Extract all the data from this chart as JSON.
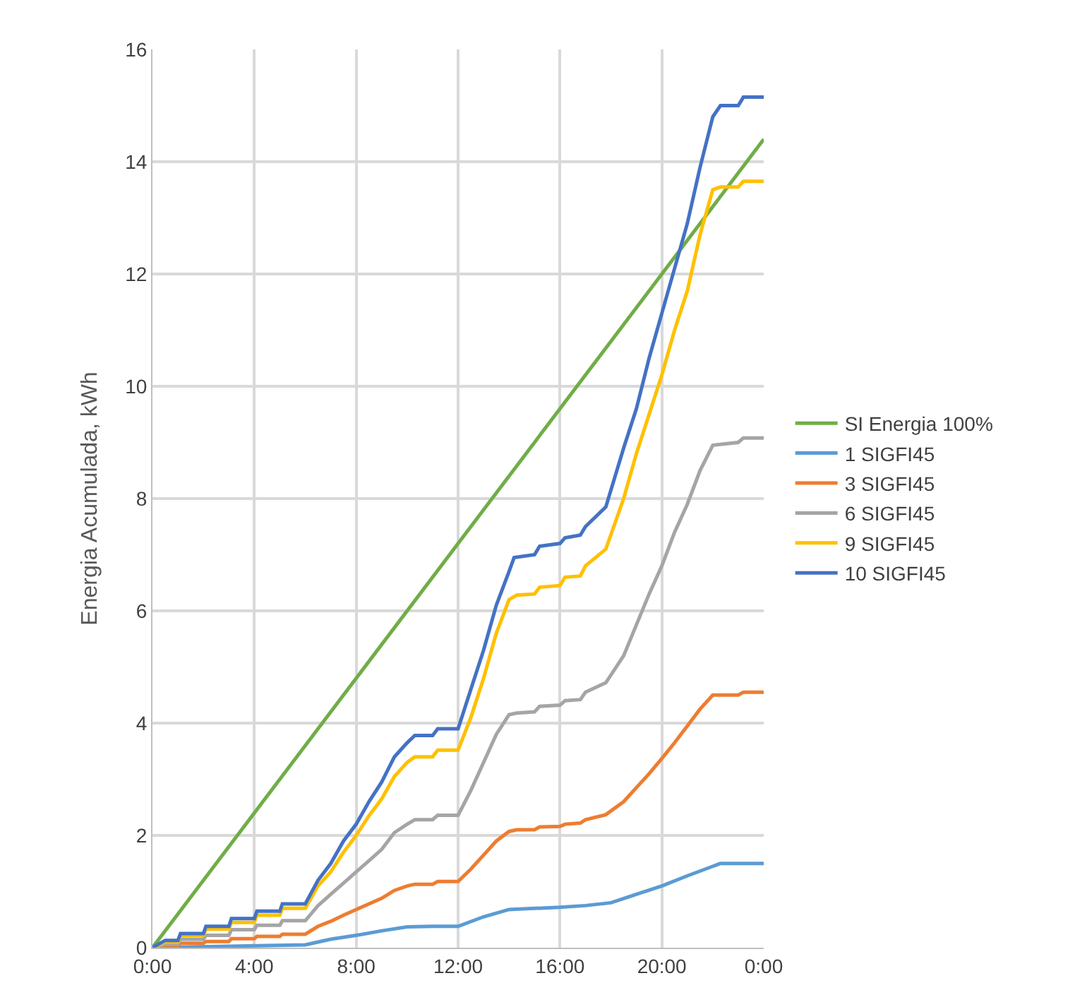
{
  "chart_data": {
    "type": "line",
    "ylabel": "Energia Acumulada, kWh",
    "xlim": [
      0,
      24
    ],
    "xticks": [
      {
        "value": 0,
        "label": "0:00"
      },
      {
        "value": 4,
        "label": "4:00"
      },
      {
        "value": 8,
        "label": "8:00"
      },
      {
        "value": 12,
        "label": "12:00"
      },
      {
        "value": 16,
        "label": "16:00"
      },
      {
        "value": 20,
        "label": "20:00"
      },
      {
        "value": 24,
        "label": "0:00"
      }
    ],
    "ylim": [
      0,
      16
    ],
    "yticks": [
      0,
      2,
      4,
      6,
      8,
      10,
      12,
      14,
      16
    ],
    "grid": true,
    "legend": "right",
    "marker": "none",
    "line_style": "solid",
    "series": [
      {
        "name": "SI Energia 100%",
        "color": "#70ad47",
        "x": [
          0,
          24
        ],
        "values": [
          0,
          14.4
        ]
      },
      {
        "name": "1 SIGFI45",
        "color": "#5b9bd5",
        "x": [
          0,
          6,
          6.5,
          7,
          8,
          9,
          10,
          11,
          12,
          13,
          14,
          15,
          16,
          17,
          18,
          19,
          20,
          21,
          22,
          22.3,
          24
        ],
        "values": [
          0,
          0.05,
          0.1,
          0.15,
          0.22,
          0.3,
          0.37,
          0.38,
          0.38,
          0.55,
          0.68,
          0.7,
          0.72,
          0.75,
          0.8,
          0.95,
          1.1,
          1.28,
          1.45,
          1.5,
          1.5
        ]
      },
      {
        "name": "3 SIGFI45",
        "color": "#ed7d31",
        "x": [
          0,
          1,
          1.1,
          2,
          2.1,
          3,
          3.1,
          4,
          4.1,
          5,
          5.1,
          6,
          6.5,
          7,
          7.5,
          8,
          8.5,
          9,
          9.5,
          10,
          10.3,
          11,
          11.2,
          12,
          12.5,
          13,
          13.5,
          14,
          14.3,
          15,
          15.2,
          16,
          16.2,
          16.8,
          17,
          17.8,
          18.5,
          19,
          19.5,
          20,
          20.5,
          21,
          21.5,
          22,
          23,
          23.2,
          24
        ],
        "values": [
          0,
          0.03,
          0.08,
          0.08,
          0.11,
          0.11,
          0.16,
          0.16,
          0.2,
          0.2,
          0.24,
          0.24,
          0.38,
          0.47,
          0.58,
          0.68,
          0.78,
          0.88,
          1.02,
          1.1,
          1.13,
          1.13,
          1.18,
          1.18,
          1.4,
          1.65,
          1.9,
          2.07,
          2.1,
          2.1,
          2.15,
          2.16,
          2.2,
          2.22,
          2.28,
          2.37,
          2.6,
          2.85,
          3.1,
          3.37,
          3.65,
          3.95,
          4.25,
          4.5,
          4.5,
          4.55,
          4.55
        ]
      },
      {
        "name": "6 SIGFI45",
        "color": "#a5a5a5",
        "x": [
          0,
          0.5,
          1,
          1.1,
          2,
          2.1,
          3,
          3.1,
          4,
          4.1,
          5,
          5.1,
          6,
          6.5,
          7,
          7.5,
          8,
          8.5,
          9,
          9.5,
          10,
          10.3,
          11,
          11.2,
          12,
          12.5,
          13,
          13.5,
          14,
          14.3,
          15,
          15.2,
          16,
          16.2,
          16.8,
          17,
          17.8,
          18.5,
          19,
          19.5,
          20,
          20.5,
          21,
          21.5,
          22,
          23,
          23.2,
          24
        ],
        "values": [
          0,
          0.06,
          0.06,
          0.15,
          0.15,
          0.22,
          0.22,
          0.32,
          0.32,
          0.4,
          0.4,
          0.48,
          0.48,
          0.75,
          0.95,
          1.15,
          1.35,
          1.55,
          1.75,
          2.05,
          2.2,
          2.28,
          2.28,
          2.36,
          2.36,
          2.8,
          3.3,
          3.8,
          4.15,
          4.18,
          4.2,
          4.3,
          4.32,
          4.4,
          4.42,
          4.55,
          4.72,
          5.2,
          5.75,
          6.3,
          6.8,
          7.4,
          7.9,
          8.5,
          8.95,
          9.0,
          9.08,
          9.08
        ]
      },
      {
        "name": "9 SIGFI45",
        "color": "#ffc000",
        "x": [
          0,
          0.5,
          1,
          1.1,
          2,
          2.1,
          3,
          3.1,
          4,
          4.1,
          5,
          5.1,
          6,
          6.5,
          7,
          7.5,
          8,
          8.5,
          9,
          9.5,
          10,
          10.3,
          11,
          11.2,
          12,
          12.5,
          13,
          13.5,
          14,
          14.3,
          15,
          15.2,
          16,
          16.2,
          16.8,
          17,
          17.8,
          18.5,
          19,
          19.5,
          20,
          20.5,
          21,
          21.5,
          22,
          22.3,
          23,
          23.2,
          24
        ],
        "values": [
          0,
          0.1,
          0.1,
          0.22,
          0.22,
          0.33,
          0.33,
          0.45,
          0.45,
          0.58,
          0.58,
          0.7,
          0.7,
          1.1,
          1.35,
          1.7,
          2.0,
          2.35,
          2.65,
          3.05,
          3.3,
          3.4,
          3.4,
          3.52,
          3.52,
          4.1,
          4.8,
          5.6,
          6.2,
          6.28,
          6.3,
          6.42,
          6.45,
          6.6,
          6.62,
          6.8,
          7.1,
          8.0,
          8.8,
          9.5,
          10.2,
          11.0,
          11.7,
          12.7,
          13.5,
          13.55,
          13.55,
          13.65,
          13.65
        ]
      },
      {
        "name": "10 SIGFI45",
        "color": "#4472c4",
        "x": [
          0,
          0.5,
          1,
          1.1,
          2,
          2.1,
          3,
          3.1,
          4,
          4.1,
          5,
          5.1,
          6,
          6.5,
          7,
          7.5,
          8,
          8.5,
          9,
          9.5,
          10,
          10.3,
          11,
          11.2,
          12,
          12.5,
          13,
          13.5,
          14,
          14.2,
          15,
          15.2,
          16,
          16.2,
          16.8,
          17,
          17.8,
          18.5,
          19,
          19.5,
          20,
          20.5,
          21,
          21.5,
          22,
          22.3,
          23,
          23.2,
          24
        ],
        "values": [
          0,
          0.13,
          0.13,
          0.25,
          0.25,
          0.38,
          0.38,
          0.52,
          0.52,
          0.65,
          0.65,
          0.78,
          0.78,
          1.2,
          1.5,
          1.9,
          2.2,
          2.6,
          2.95,
          3.4,
          3.65,
          3.78,
          3.78,
          3.9,
          3.9,
          4.6,
          5.3,
          6.1,
          6.7,
          6.95,
          7.0,
          7.15,
          7.2,
          7.3,
          7.35,
          7.5,
          7.85,
          8.9,
          9.6,
          10.5,
          11.3,
          12.1,
          12.9,
          13.9,
          14.8,
          15.0,
          15.0,
          15.15,
          15.15
        ]
      }
    ]
  }
}
